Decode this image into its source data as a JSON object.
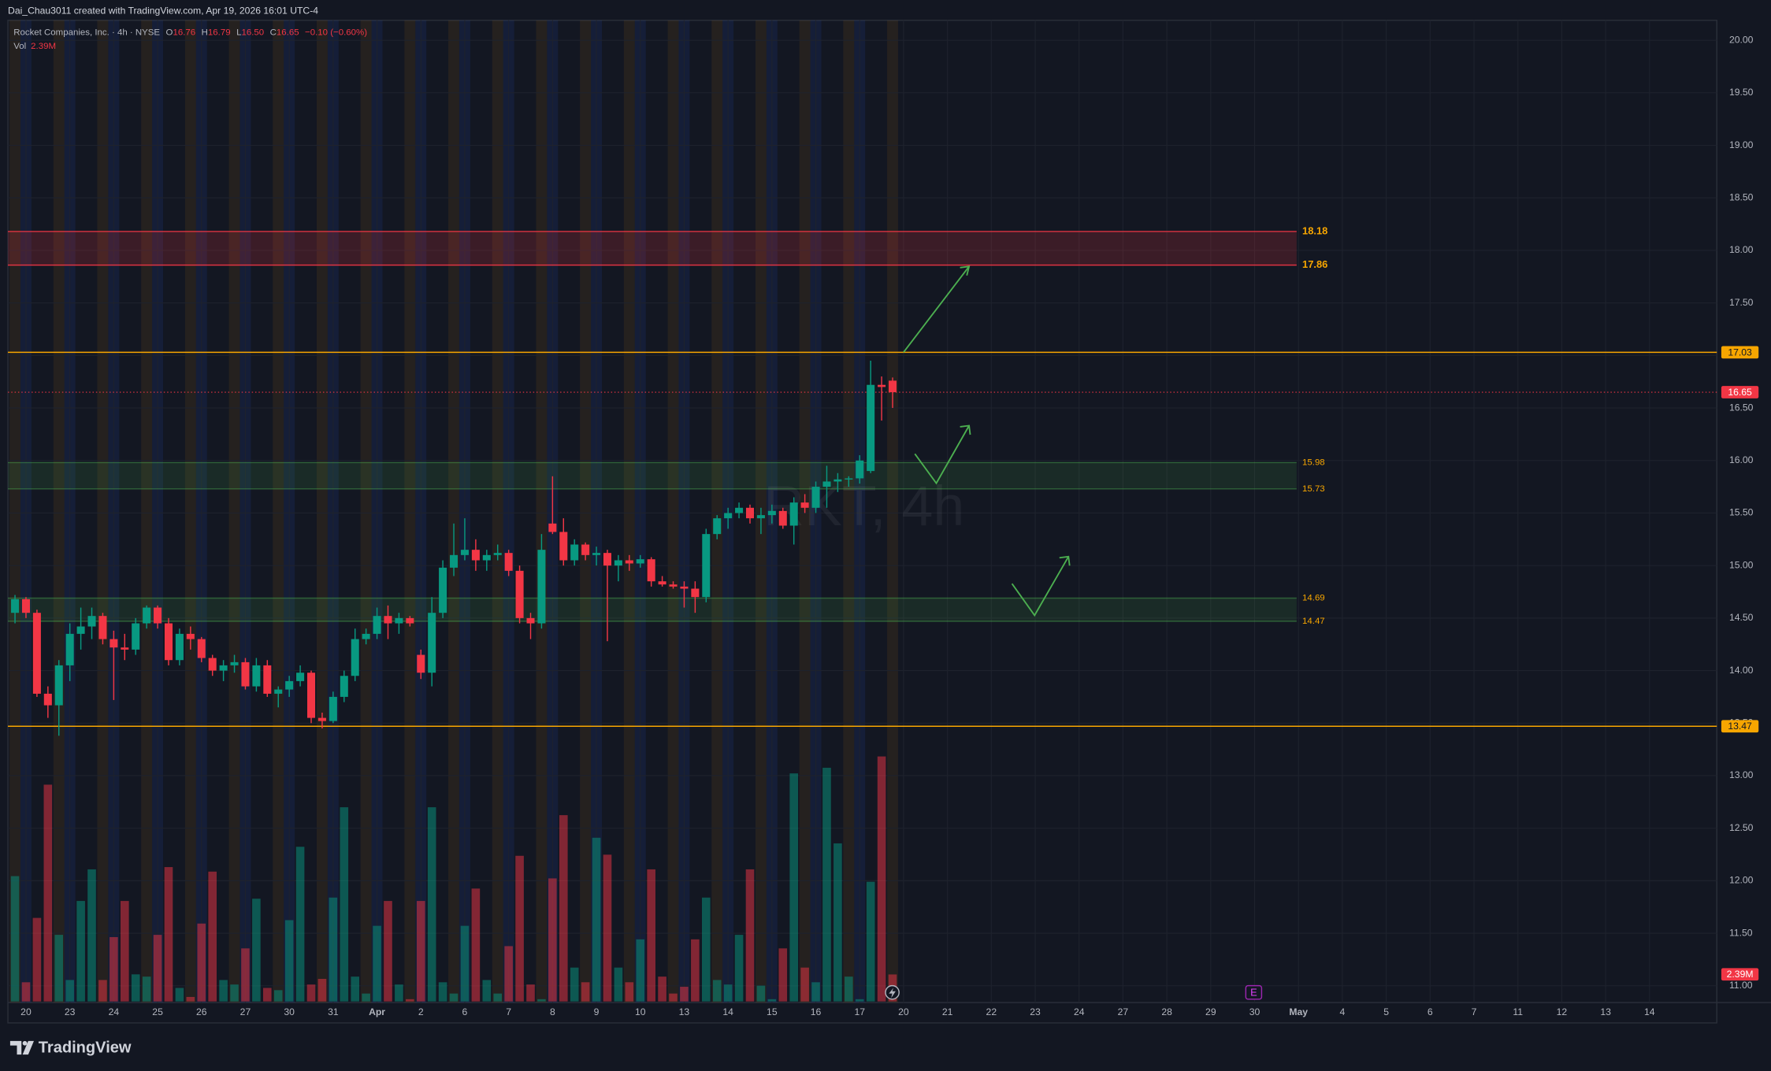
{
  "header": {
    "credit": "Dai_Chau3011 created with TradingView.com, Apr 19, 2026 16:01 UTC-4"
  },
  "legend": {
    "symbol": "Rocket Companies, Inc. · 4h · NYSE",
    "o_label": "O",
    "o": "16.76",
    "h_label": "H",
    "h": "16.79",
    "l_label": "L",
    "l": "16.50",
    "c_label": "C",
    "c": "16.65",
    "change": "−0.10 (−0.60%)",
    "vol_label": "Vol",
    "vol": "2.39M"
  },
  "watermark": "RKT, 4h",
  "events": {
    "earnings": "E"
  },
  "footer": {
    "brand": "TradingView"
  },
  "chart_data": {
    "type": "candlestick",
    "categories": [
      "20",
      "23",
      "24",
      "25",
      "26",
      "27",
      "30",
      "31",
      "Apr",
      "2",
      "6",
      "7",
      "8",
      "9",
      "10",
      "13",
      "14",
      "15",
      "16",
      "17",
      "20",
      "21",
      "22",
      "23",
      "24",
      "27",
      "28",
      "29",
      "30",
      "May",
      "4",
      "5",
      "6",
      "7",
      "11",
      "12",
      "13",
      "14"
    ],
    "ohlc": [
      [
        14.55,
        14.72,
        14.45,
        14.68
      ],
      [
        14.68,
        14.7,
        14.5,
        14.55
      ],
      [
        14.55,
        14.58,
        13.75,
        13.78
      ],
      [
        13.78,
        13.85,
        13.55,
        13.67
      ],
      [
        13.67,
        14.1,
        13.38,
        14.05
      ],
      [
        14.05,
        14.45,
        13.9,
        14.35
      ],
      [
        14.35,
        14.6,
        14.2,
        14.42
      ],
      [
        14.42,
        14.6,
        14.3,
        14.52
      ],
      [
        14.52,
        14.55,
        14.25,
        14.3
      ],
      [
        14.3,
        14.38,
        13.72,
        14.22
      ],
      [
        14.22,
        14.35,
        14.1,
        14.2
      ],
      [
        14.2,
        14.5,
        14.15,
        14.45
      ],
      [
        14.45,
        14.62,
        14.4,
        14.6
      ],
      [
        14.6,
        14.62,
        14.4,
        14.45
      ],
      [
        14.45,
        14.5,
        14.05,
        14.1
      ],
      [
        14.1,
        14.4,
        14.05,
        14.35
      ],
      [
        14.35,
        14.42,
        14.2,
        14.3
      ],
      [
        14.3,
        14.32,
        14.08,
        14.12
      ],
      [
        14.12,
        14.15,
        13.95,
        14.0
      ],
      [
        14.0,
        14.1,
        13.9,
        14.05
      ],
      [
        14.05,
        14.15,
        13.98,
        14.08
      ],
      [
        14.08,
        14.12,
        13.82,
        13.85
      ],
      [
        13.85,
        14.12,
        13.8,
        14.05
      ],
      [
        14.05,
        14.1,
        13.75,
        13.78
      ],
      [
        13.78,
        13.85,
        13.65,
        13.82
      ],
      [
        13.82,
        13.95,
        13.75,
        13.9
      ],
      [
        13.9,
        14.05,
        13.85,
        13.98
      ],
      [
        13.98,
        14.0,
        13.5,
        13.55
      ],
      [
        13.55,
        13.6,
        13.45,
        13.52
      ],
      [
        13.52,
        13.8,
        13.5,
        13.75
      ],
      [
        13.75,
        14.0,
        13.7,
        13.95
      ],
      [
        13.95,
        14.4,
        13.9,
        14.3
      ],
      [
        14.3,
        14.4,
        14.25,
        14.35
      ],
      [
        14.35,
        14.6,
        14.3,
        14.52
      ],
      [
        14.52,
        14.62,
        14.3,
        14.45
      ],
      [
        14.45,
        14.55,
        14.35,
        14.5
      ],
      [
        14.5,
        14.52,
        14.42,
        14.45
      ],
      [
        14.15,
        14.2,
        13.92,
        13.98
      ],
      [
        13.98,
        14.7,
        13.85,
        14.55
      ],
      [
        14.55,
        15.05,
        14.5,
        14.98
      ],
      [
        14.98,
        15.4,
        14.9,
        15.1
      ],
      [
        15.1,
        15.45,
        15.05,
        15.15
      ],
      [
        15.15,
        15.25,
        14.95,
        15.05
      ],
      [
        15.05,
        15.15,
        14.95,
        15.1
      ],
      [
        15.1,
        15.2,
        15.05,
        15.12
      ],
      [
        15.12,
        15.15,
        14.9,
        14.95
      ],
      [
        14.95,
        15.0,
        14.45,
        14.5
      ],
      [
        14.5,
        14.55,
        14.3,
        14.45
      ],
      [
        14.45,
        15.3,
        14.4,
        15.15
      ],
      [
        15.4,
        15.85,
        15.3,
        15.32
      ],
      [
        15.32,
        15.45,
        15.0,
        15.05
      ],
      [
        15.05,
        15.25,
        15.0,
        15.2
      ],
      [
        15.2,
        15.22,
        15.05,
        15.1
      ],
      [
        15.1,
        15.18,
        15.0,
        15.12
      ],
      [
        15.12,
        15.15,
        14.28,
        15.0
      ],
      [
        15.0,
        15.1,
        14.85,
        15.05
      ],
      [
        15.05,
        15.1,
        14.95,
        15.02
      ],
      [
        15.02,
        15.1,
        14.98,
        15.06
      ],
      [
        15.06,
        15.08,
        14.8,
        14.85
      ],
      [
        14.85,
        14.9,
        14.8,
        14.82
      ],
      [
        14.82,
        14.85,
        14.78,
        14.8
      ],
      [
        14.8,
        14.85,
        14.6,
        14.78
      ],
      [
        14.78,
        14.85,
        14.55,
        14.7
      ],
      [
        14.7,
        15.35,
        14.65,
        15.3
      ],
      [
        15.3,
        15.48,
        15.25,
        15.45
      ],
      [
        15.45,
        15.55,
        15.35,
        15.5
      ],
      [
        15.5,
        15.6,
        15.45,
        15.55
      ],
      [
        15.55,
        15.58,
        15.4,
        15.45
      ],
      [
        15.45,
        15.55,
        15.3,
        15.48
      ],
      [
        15.48,
        15.58,
        15.4,
        15.52
      ],
      [
        15.52,
        15.55,
        15.35,
        15.38
      ],
      [
        15.38,
        15.65,
        15.2,
        15.6
      ],
      [
        15.6,
        15.68,
        15.5,
        15.55
      ],
      [
        15.55,
        15.8,
        15.5,
        15.75
      ],
      [
        15.75,
        15.95,
        15.55,
        15.8
      ],
      [
        15.8,
        15.88,
        15.7,
        15.82
      ],
      [
        15.82,
        15.85,
        15.75,
        15.83
      ],
      [
        15.83,
        16.05,
        15.78,
        16.0
      ],
      [
        15.9,
        16.95,
        15.88,
        16.72
      ],
      [
        16.72,
        16.8,
        16.38,
        16.7
      ],
      [
        16.76,
        16.79,
        16.5,
        16.65
      ]
    ],
    "volume": [
      11.1,
      1.7,
      7.4,
      19.2,
      5.9,
      1.9,
      8.9,
      11.7,
      1.9,
      5.7,
      8.9,
      2.4,
      2.2,
      5.9,
      11.9,
      1.2,
      0.4,
      6.9,
      11.5,
      1.9,
      1.5,
      4.7,
      9.1,
      1.2,
      1.0,
      7.2,
      13.7,
      1.5,
      2.0,
      9.2,
      17.2,
      2.2,
      0.7,
      6.7,
      8.9,
      1.5,
      0.2,
      8.9,
      17.2,
      1.7,
      0.7,
      6.7,
      10.0,
      1.9,
      0.7,
      4.9,
      12.9,
      1.5,
      0.2,
      10.9,
      16.5,
      3.0,
      1.7,
      14.5,
      13.0,
      3.0,
      1.7,
      5.5,
      11.7,
      2.2,
      0.7,
      1.3,
      5.5,
      9.2,
      1.9,
      1.5,
      5.9,
      11.7,
      1.4,
      0.2,
      4.7,
      20.2,
      3.0,
      1.7,
      20.7,
      14.0,
      2.2,
      0.2,
      10.6,
      21.7,
      2.39
    ],
    "ylim": [
      10.84,
      20.19
    ],
    "yticks": [
      {
        "value": 11,
        "label": "11.00"
      },
      {
        "value": 11.5,
        "label": "11.50"
      },
      {
        "value": 12,
        "label": "12.00"
      },
      {
        "value": 12.5,
        "label": "12.50"
      },
      {
        "value": 13,
        "label": "13.00"
      },
      {
        "value": 13.5,
        "label": "13.50"
      },
      {
        "value": 14,
        "label": "14.00"
      },
      {
        "value": 14.5,
        "label": "14.50"
      },
      {
        "value": 15,
        "label": "15.00"
      },
      {
        "value": 15.5,
        "label": "15.50"
      },
      {
        "value": 16,
        "label": "16.00"
      },
      {
        "value": 16.5,
        "label": "16.50"
      },
      {
        "value": 17,
        "label": "17.00"
      },
      {
        "value": 17.5,
        "label": "17.50"
      },
      {
        "value": 18,
        "label": "18.00"
      },
      {
        "value": 18.5,
        "label": "18.50"
      },
      {
        "value": 19,
        "label": "19.00"
      },
      {
        "value": 19.5,
        "label": "19.50"
      },
      {
        "value": 20,
        "label": "20.00"
      }
    ],
    "grid": true,
    "up_color": "#089981",
    "down_color": "#f23645",
    "zones": [
      {
        "low": 17.86,
        "high": 18.18,
        "color": "#f23645"
      },
      {
        "low": 15.73,
        "high": 15.98,
        "color": "#4caf50"
      },
      {
        "low": 14.47,
        "high": 14.69,
        "color": "#4caf50"
      }
    ],
    "levels": [
      {
        "value": 17.03,
        "color": "#f7a600"
      },
      {
        "value": 13.47,
        "color": "#f7a600"
      }
    ],
    "last_price": {
      "value": 16.65,
      "color": "#f23645"
    }
  }
}
